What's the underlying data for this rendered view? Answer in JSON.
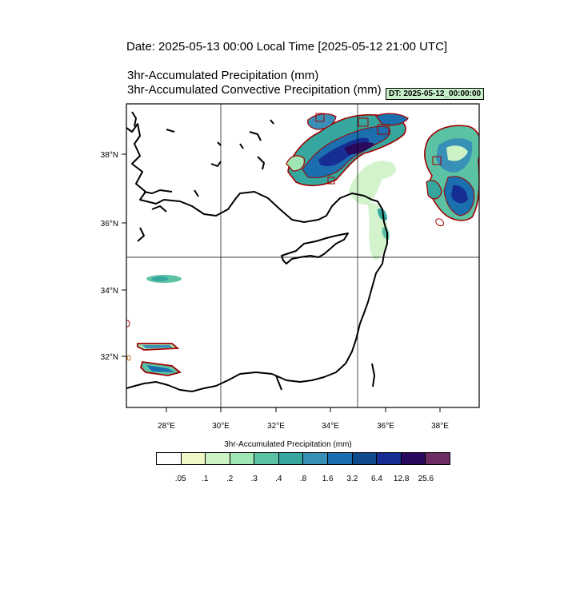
{
  "header": {
    "date_line": "Date: 2025-05-13  00:00 Local Time [2025-05-12  21:00 UTC]",
    "title_precip": "3hr-Accumulated Precipitation   (mm)",
    "title_convective": "3hr-Accumulated Convective Precipitation   (mm)",
    "dt_badge": "DT: 2025-05-12_00:00:00"
  },
  "map": {
    "region": "Eastern Mediterranean",
    "lon_ticks": [
      "28°E",
      "30°E",
      "32°E",
      "34°E",
      "36°E",
      "38°E"
    ],
    "lat_ticks": [
      "38°N",
      "36°N",
      "34°N",
      "32°N"
    ],
    "grid_lines_lon": [
      "30°E",
      "35°E"
    ],
    "grid_lines_lat": [
      "35°N"
    ],
    "contour_color": "#a00000",
    "coast_color": "#000000"
  },
  "colorbar": {
    "title": "3hr-Accumulated Precipitation  (mm)",
    "colors": [
      "#ffffff",
      "#eef8c4",
      "#cdf2c6",
      "#9fe6b4",
      "#5cc2a4",
      "#35a79e",
      "#3890b7",
      "#1b6fae",
      "#0e4a8c",
      "#162e94",
      "#2a0a5e",
      "#6b2d63"
    ],
    "labels": [
      ".05",
      ".1",
      ".2",
      ".3",
      ".4",
      ".8",
      "1.6",
      "3.2",
      "6.4",
      "12.8",
      "25.6"
    ]
  }
}
